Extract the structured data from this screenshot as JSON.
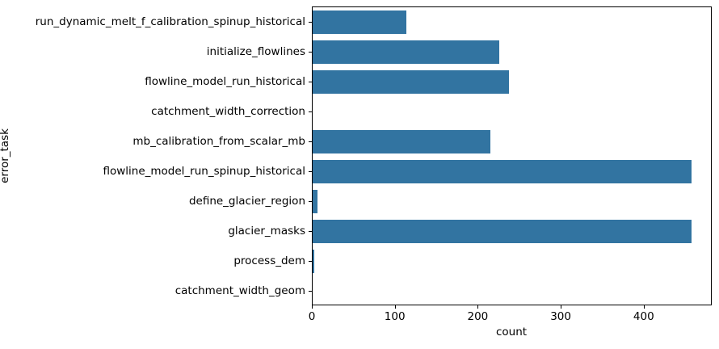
{
  "chart_data": {
    "type": "bar",
    "orientation": "horizontal",
    "title": "",
    "xlabel": "count",
    "ylabel": "error_task",
    "categories": [
      "run_dynamic_melt_f_calibration_spinup_historical",
      "initialize_flowlines",
      "flowline_model_run_historical",
      "catchment_width_correction",
      "mb_calibration_from_scalar_mb",
      "flowline_model_run_spinup_historical",
      "define_glacier_region",
      "glacier_masks",
      "process_dem",
      "catchment_width_geom"
    ],
    "values": [
      113,
      226,
      238,
      0,
      215,
      459,
      6,
      459,
      2,
      0
    ],
    "xlim": [
      0,
      482
    ],
    "xticks": [
      0,
      100,
      200,
      300,
      400
    ],
    "bar_color": "#3274a1",
    "grid": false,
    "legend": null
  }
}
